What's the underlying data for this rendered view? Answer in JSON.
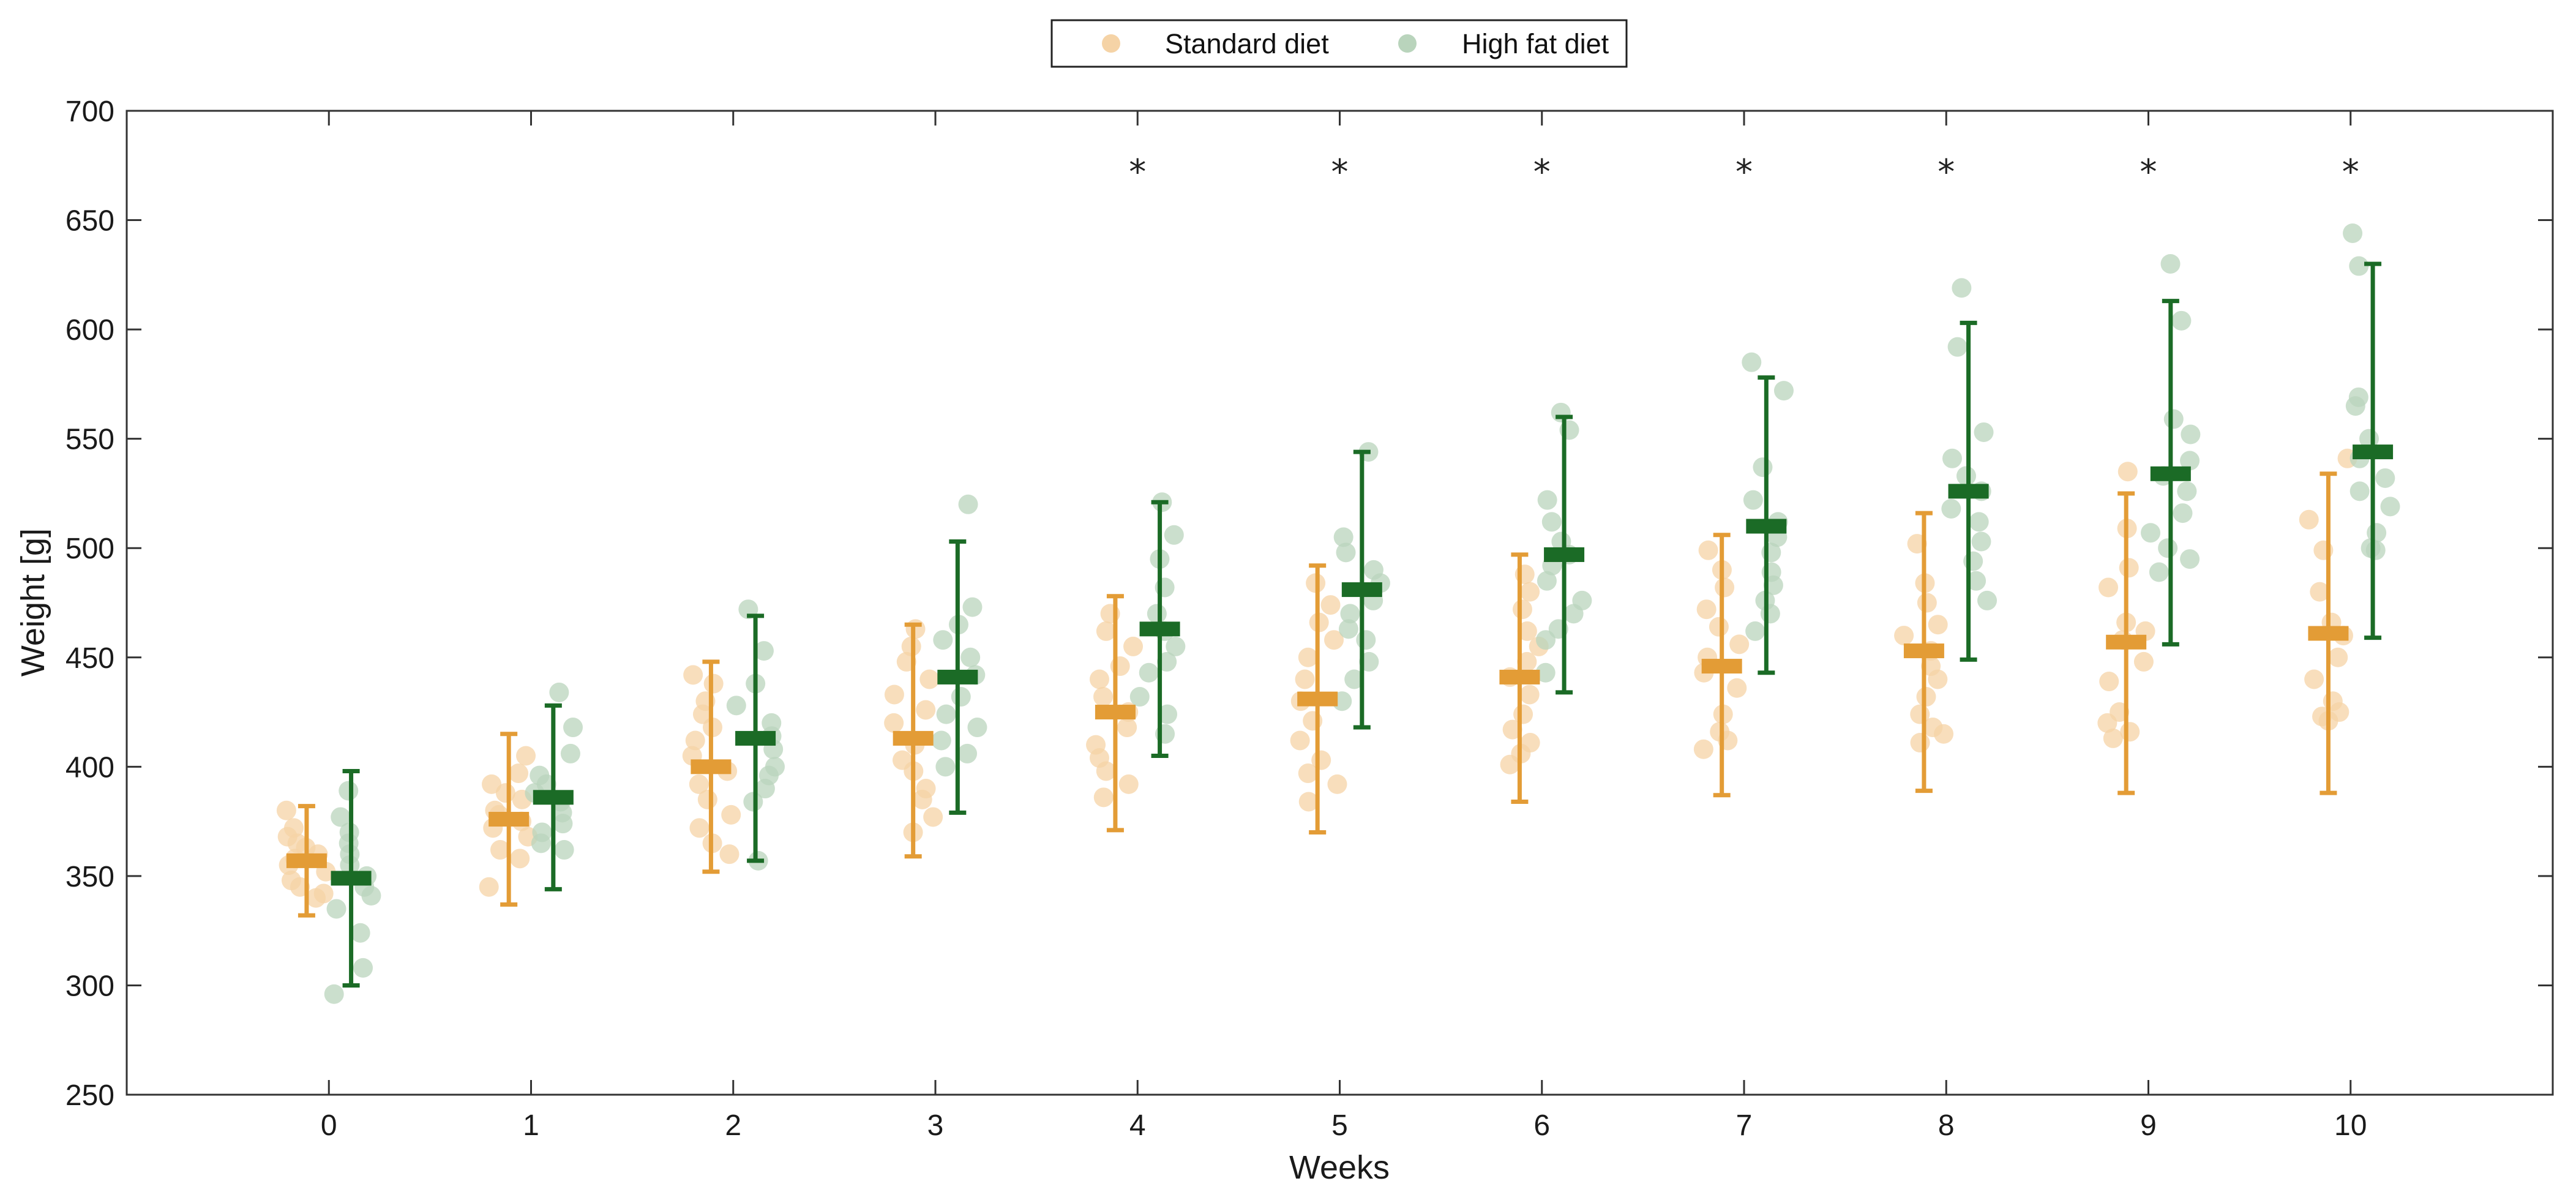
{
  "chart_data": {
    "type": "scatter",
    "title": "",
    "xlabel": "Weeks",
    "ylabel": "Weight [g]",
    "xlim": [
      -1,
      11
    ],
    "ylim": [
      250,
      700
    ],
    "x_ticks": [
      0,
      1,
      2,
      3,
      4,
      5,
      6,
      7,
      8,
      9,
      10
    ],
    "y_ticks": [
      250,
      300,
      350,
      400,
      450,
      500,
      550,
      600,
      650,
      700
    ],
    "legend": {
      "placement": "top-center",
      "entries": [
        "Standard diet",
        "High fat diet"
      ]
    },
    "significance_marker": "*",
    "significant_weeks": [
      4,
      5,
      6,
      7,
      8,
      9,
      10
    ],
    "series": [
      {
        "name": "Standard diet",
        "color": "#E39C36",
        "point_color": "#F5D3A6",
        "mean": [
          357,
          376,
          400,
          413,
          425,
          431,
          441,
          446,
          453,
          457,
          461
        ],
        "err_low": [
          332,
          337,
          352,
          359,
          371,
          370,
          384,
          387,
          389,
          388,
          388
        ],
        "err_high": [
          382,
          415,
          448,
          465,
          478,
          492,
          497,
          506,
          516,
          525,
          534
        ],
        "points": [
          [
            380,
            372,
            368,
            365,
            358,
            355,
            352,
            348,
            345,
            342,
            340,
            360,
            363
          ],
          [
            405,
            397,
            392,
            388,
            385,
            380,
            375,
            372,
            368,
            362,
            358,
            345,
            378
          ],
          [
            442,
            438,
            430,
            424,
            418,
            412,
            405,
            398,
            392,
            385,
            378,
            372,
            365,
            360
          ],
          [
            463,
            455,
            448,
            440,
            433,
            426,
            420,
            410,
            403,
            398,
            390,
            385,
            377,
            370
          ],
          [
            470,
            462,
            455,
            446,
            440,
            432,
            425,
            418,
            410,
            404,
            398,
            392,
            386
          ],
          [
            484,
            474,
            466,
            458,
            450,
            440,
            430,
            421,
            412,
            403,
            397,
            392,
            384
          ],
          [
            488,
            480,
            472,
            462,
            455,
            448,
            441,
            433,
            424,
            417,
            411,
            406,
            401
          ],
          [
            499,
            490,
            482,
            472,
            464,
            456,
            450,
            443,
            436,
            424,
            416,
            412,
            408
          ],
          [
            502,
            484,
            475,
            465,
            460,
            453,
            446,
            440,
            432,
            424,
            418,
            415,
            411
          ],
          [
            535,
            509,
            491,
            482,
            466,
            462,
            458,
            448,
            439,
            425,
            420,
            416,
            413
          ],
          [
            541,
            513,
            499,
            480,
            466,
            460,
            450,
            440,
            430,
            425,
            423,
            421
          ]
        ]
      },
      {
        "name": "High fat diet",
        "color": "#1B6B26",
        "point_color": "#B9D4BC",
        "mean": [
          349,
          386,
          413,
          441,
          463,
          481,
          497,
          510,
          526,
          534,
          544
        ],
        "err_low": [
          300,
          344,
          357,
          379,
          405,
          418,
          434,
          443,
          449,
          456,
          459
        ],
        "err_high": [
          398,
          428,
          469,
          503,
          521,
          544,
          560,
          578,
          603,
          613,
          630
        ],
        "points": [
          [
            389,
            377,
            370,
            365,
            360,
            355,
            350,
            345,
            341,
            335,
            324,
            308,
            296
          ],
          [
            434,
            418,
            406,
            396,
            392,
            388,
            384,
            379,
            374,
            370,
            365,
            362
          ],
          [
            472,
            453,
            438,
            428,
            420,
            414,
            408,
            400,
            396,
            390,
            384,
            357
          ],
          [
            520,
            473,
            465,
            458,
            450,
            442,
            432,
            424,
            418,
            412,
            406,
            400
          ],
          [
            521,
            506,
            495,
            482,
            470,
            462,
            455,
            448,
            443,
            432,
            424,
            415
          ],
          [
            544,
            505,
            498,
            490,
            484,
            476,
            470,
            463,
            458,
            448,
            440,
            430
          ],
          [
            562,
            554,
            522,
            512,
            503,
            497,
            492,
            485,
            476,
            470,
            463,
            458,
            443
          ],
          [
            585,
            572,
            537,
            522,
            512,
            505,
            498,
            489,
            483,
            476,
            470,
            462
          ],
          [
            619,
            592,
            553,
            541,
            533,
            526,
            518,
            512,
            503,
            494,
            485,
            476
          ],
          [
            630,
            604,
            559,
            552,
            540,
            533,
            526,
            516,
            507,
            500,
            495,
            489
          ],
          [
            644,
            629,
            569,
            565,
            550,
            541,
            532,
            526,
            519,
            507,
            500,
            499
          ]
        ]
      }
    ]
  }
}
